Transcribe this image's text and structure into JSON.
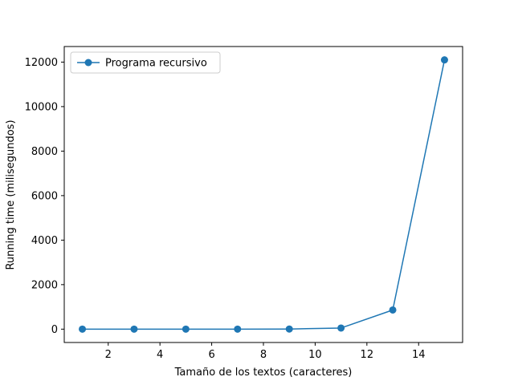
{
  "chart_data": {
    "type": "line",
    "title": "",
    "xlabel": "Tamaño de los textos (caracteres)",
    "ylabel": "Running time (milisegundos)",
    "xlim": [
      0.3,
      15.7
    ],
    "ylim": [
      -600,
      12700
    ],
    "xticks": [
      2,
      4,
      6,
      8,
      10,
      12,
      14
    ],
    "yticks": [
      0,
      2000,
      4000,
      6000,
      8000,
      10000,
      12000
    ],
    "grid": false,
    "legend_position": "top-left",
    "series": [
      {
        "name": "Programa recursivo",
        "color": "#1f77b4",
        "marker": "circle",
        "x": [
          1,
          3,
          5,
          7,
          9,
          11,
          13,
          15
        ],
        "y": [
          0,
          0,
          0,
          1,
          5,
          50,
          860,
          12100
        ]
      }
    ]
  }
}
